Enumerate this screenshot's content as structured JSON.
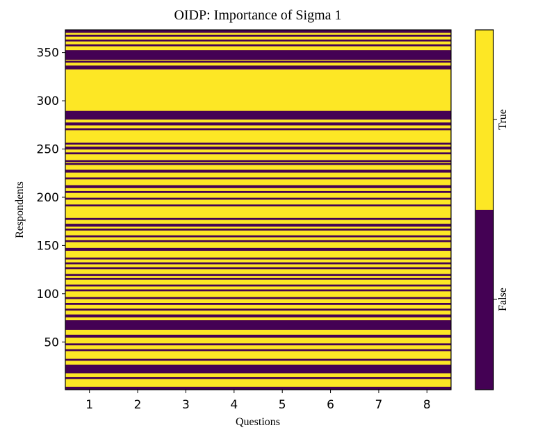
{
  "chart_data": {
    "type": "heatmap",
    "title": "OIDP: Importance of Sigma 1",
    "xlabel": "Questions",
    "ylabel": "Respondents",
    "x_ticks": [
      "1",
      "2",
      "3",
      "4",
      "5",
      "6",
      "7",
      "8"
    ],
    "y_ticks": [
      50,
      100,
      150,
      200,
      250,
      300,
      350
    ],
    "xlim": [
      0.5,
      8.5
    ],
    "ylim": [
      0.5,
      373.5
    ],
    "colors": {
      "true": "#fde725",
      "false": "#440154"
    },
    "colorbar": {
      "labels": [
        "True",
        "False"
      ],
      "split_fraction": 0.5
    },
    "false_row_bands": [
      [
        1,
        3
      ],
      [
        12,
        13
      ],
      [
        18,
        26
      ],
      [
        31,
        32
      ],
      [
        41,
        42
      ],
      [
        47,
        48
      ],
      [
        55,
        57
      ],
      [
        63,
        72
      ],
      [
        76,
        78
      ],
      [
        83,
        84
      ],
      [
        89,
        90
      ],
      [
        95,
        96
      ],
      [
        103,
        104
      ],
      [
        108,
        109
      ],
      [
        115,
        116
      ],
      [
        119,
        120
      ],
      [
        126,
        127
      ],
      [
        131,
        132
      ],
      [
        136,
        137
      ],
      [
        145,
        147
      ],
      [
        154,
        155
      ],
      [
        159,
        160
      ],
      [
        166,
        167
      ],
      [
        170,
        172
      ],
      [
        177,
        178
      ],
      [
        191,
        192
      ],
      [
        198,
        199
      ],
      [
        205,
        206
      ],
      [
        210,
        212
      ],
      [
        219,
        220
      ],
      [
        226,
        228
      ],
      [
        234,
        235
      ],
      [
        237,
        238
      ],
      [
        245,
        246
      ],
      [
        250,
        252
      ],
      [
        255,
        256
      ],
      [
        270,
        271
      ],
      [
        275,
        277
      ],
      [
        281,
        289
      ],
      [
        333,
        336
      ],
      [
        340,
        341
      ],
      [
        343,
        352
      ],
      [
        357,
        358
      ],
      [
        362,
        363
      ],
      [
        367,
        368
      ],
      [
        371,
        373
      ]
    ]
  }
}
